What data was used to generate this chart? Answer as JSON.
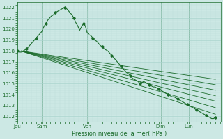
{
  "xlabel": "Pression niveau de la mer( hPa )",
  "bg_color": "#cce8e4",
  "grid_major_color": "#aad4ce",
  "grid_minor_color": "#bcdeda",
  "line_color": "#1a6b2a",
  "ylim": [
    1011.5,
    1022.5
  ],
  "xlim": [
    0.0,
    1.08
  ],
  "yticks": [
    1012,
    1013,
    1014,
    1015,
    1016,
    1017,
    1018,
    1019,
    1020,
    1021,
    1022
  ],
  "day_labels": [
    "Jeu",
    "Sam",
    "Ven",
    "Dim",
    "Lun"
  ],
  "day_positions": [
    0.0,
    0.13,
    0.37,
    0.76,
    0.91
  ],
  "fan_lines": [
    {
      "x0": 0.02,
      "y0": 1018.0,
      "x1": 1.05,
      "y1": 1012.2
    },
    {
      "x0": 0.02,
      "y0": 1018.0,
      "x1": 1.05,
      "y1": 1012.8
    },
    {
      "x0": 0.02,
      "y0": 1018.0,
      "x1": 1.05,
      "y1": 1013.4
    },
    {
      "x0": 0.02,
      "y0": 1018.0,
      "x1": 1.05,
      "y1": 1013.9
    },
    {
      "x0": 0.02,
      "y0": 1018.0,
      "x1": 1.05,
      "y1": 1014.4
    },
    {
      "x0": 0.02,
      "y0": 1018.0,
      "x1": 1.05,
      "y1": 1014.9
    },
    {
      "x0": 0.02,
      "y0": 1018.0,
      "x1": 1.05,
      "y1": 1015.4
    }
  ],
  "detailed_x": [
    0.0,
    0.01,
    0.02,
    0.03,
    0.04,
    0.05,
    0.06,
    0.07,
    0.08,
    0.09,
    0.1,
    0.11,
    0.12,
    0.13,
    0.14,
    0.15,
    0.16,
    0.17,
    0.18,
    0.19,
    0.2,
    0.21,
    0.22,
    0.23,
    0.24,
    0.25,
    0.26,
    0.27,
    0.28,
    0.29,
    0.3,
    0.31,
    0.32,
    0.33,
    0.34,
    0.35,
    0.36,
    0.37,
    0.38,
    0.39,
    0.4,
    0.41,
    0.42,
    0.43,
    0.44,
    0.45,
    0.46,
    0.47,
    0.48,
    0.49,
    0.5,
    0.51,
    0.52,
    0.53,
    0.54,
    0.55,
    0.56,
    0.57,
    0.58,
    0.59,
    0.6,
    0.61,
    0.62,
    0.63,
    0.64,
    0.65,
    0.66,
    0.67,
    0.68,
    0.69,
    0.7,
    0.71,
    0.72,
    0.73,
    0.74,
    0.75,
    0.76,
    0.77,
    0.78,
    0.79,
    0.8,
    0.81,
    0.82,
    0.83,
    0.84,
    0.85,
    0.86,
    0.87,
    0.88,
    0.89,
    0.9,
    0.91,
    0.92,
    0.93,
    0.94,
    0.95,
    0.96,
    0.97,
    0.98,
    0.99,
    1.0,
    1.01,
    1.02,
    1.03,
    1.04,
    1.05
  ],
  "detailed_y": [
    1018.0,
    1017.9,
    1017.9,
    1018.0,
    1018.1,
    1018.2,
    1018.4,
    1018.6,
    1018.8,
    1019.0,
    1019.2,
    1019.4,
    1019.6,
    1019.8,
    1020.2,
    1020.5,
    1020.8,
    1021.0,
    1021.2,
    1021.3,
    1021.5,
    1021.6,
    1021.7,
    1021.8,
    1021.9,
    1022.0,
    1021.9,
    1021.7,
    1021.5,
    1021.3,
    1021.0,
    1020.6,
    1020.3,
    1019.9,
    1020.2,
    1020.5,
    1020.3,
    1019.7,
    1019.5,
    1019.4,
    1019.2,
    1019.0,
    1018.9,
    1018.7,
    1018.5,
    1018.4,
    1018.2,
    1018.1,
    1018.0,
    1017.8,
    1017.6,
    1017.4,
    1017.2,
    1017.0,
    1016.8,
    1016.6,
    1016.4,
    1016.2,
    1016.0,
    1015.9,
    1015.7,
    1015.5,
    1015.4,
    1015.3,
    1015.2,
    1015.0,
    1015.1,
    1015.2,
    1015.1,
    1015.0,
    1014.9,
    1014.8,
    1014.7,
    1014.7,
    1014.6,
    1014.5,
    1014.4,
    1014.3,
    1014.2,
    1014.1,
    1014.0,
    1013.9,
    1013.8,
    1013.8,
    1013.7,
    1013.6,
    1013.5,
    1013.4,
    1013.3,
    1013.2,
    1013.1,
    1013.0,
    1012.9,
    1012.8,
    1012.7,
    1012.6,
    1012.5,
    1012.4,
    1012.3,
    1012.2,
    1012.1,
    1012.0,
    1011.9,
    1011.8,
    1011.8,
    1011.9
  ]
}
